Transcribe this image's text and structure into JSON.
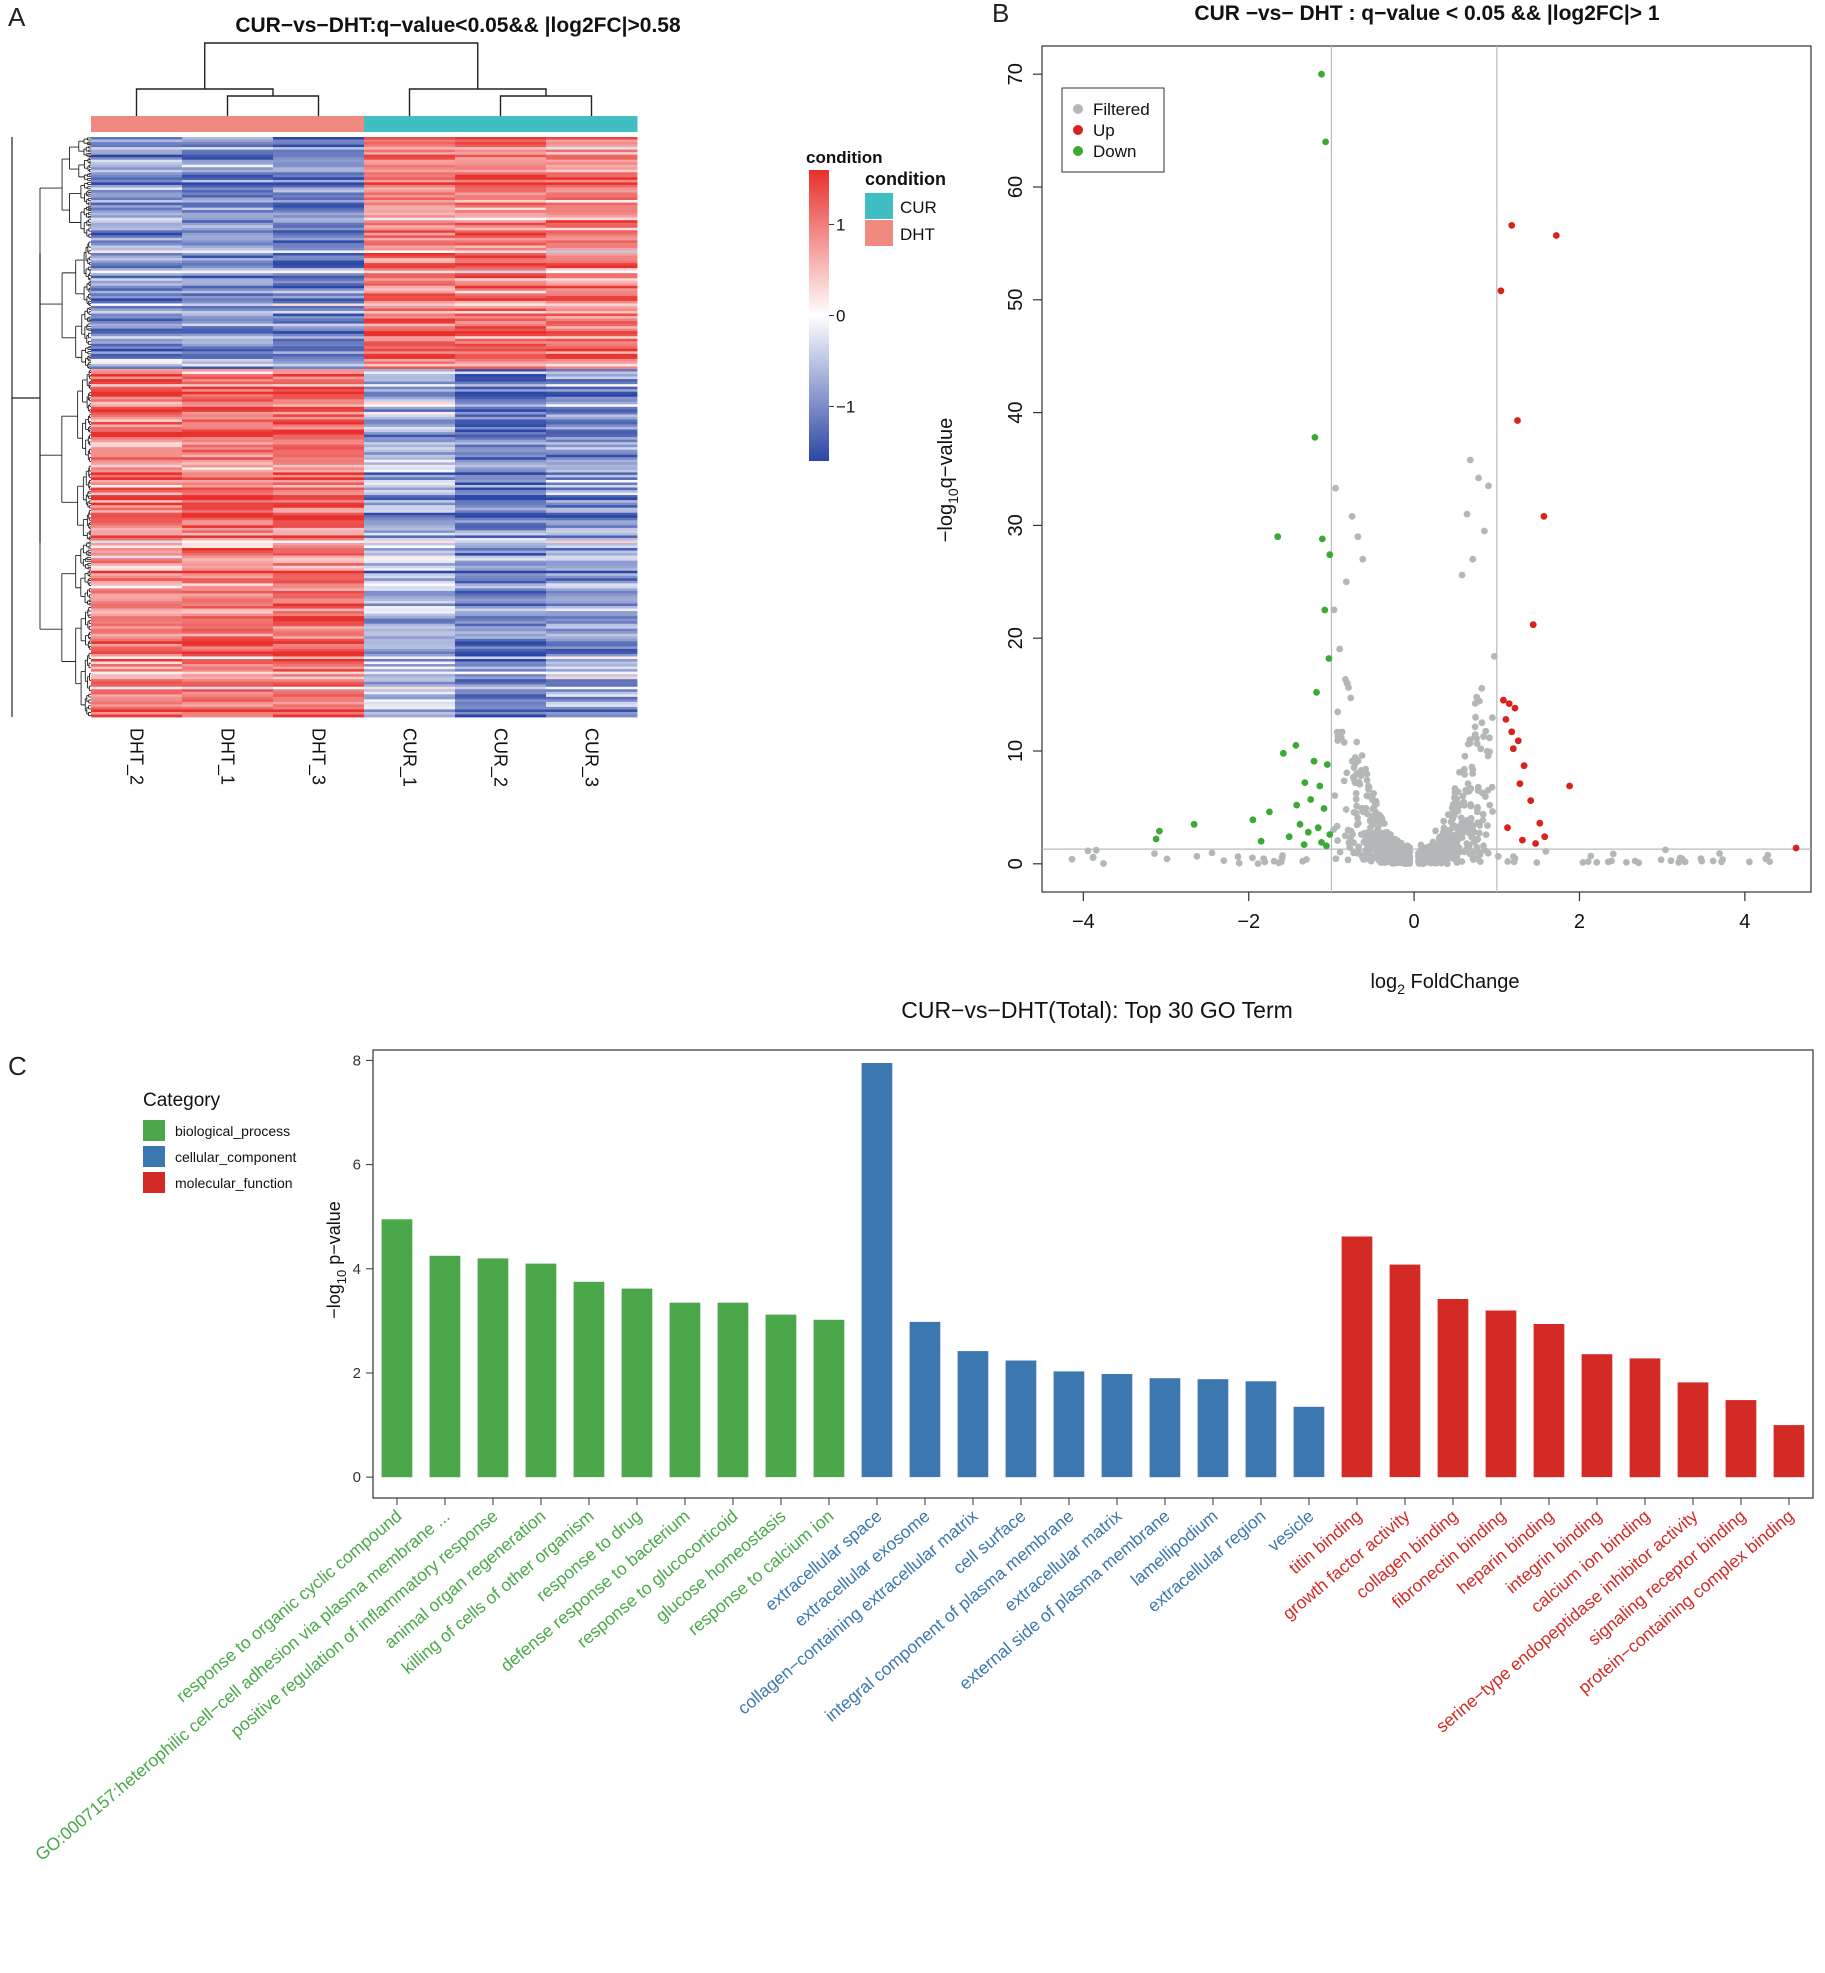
{
  "panels": {
    "A": "A",
    "B": "B",
    "C": "C"
  },
  "colors": {
    "dht": "#f08a80",
    "cur": "#3fbfc4",
    "heat_high": "#e8302c",
    "heat_mid": "#ffffff",
    "heat_low": "#2b46a6",
    "filtered": "#b3b7b8",
    "up": "#d9221c",
    "down": "#3aaa35",
    "biological_process": "#4aa84a",
    "cellular_component": "#3b78b0",
    "molecular_function": "#d32a25"
  },
  "chart_data": [
    {
      "type": "heatmap",
      "title": "CUR−vs−DHT:q−value<0.05&& |log2FC|>0.58",
      "columns": [
        "DHT_2",
        "DHT_1",
        "DHT_3",
        "CUR_1",
        "CUR_2",
        "CUR_3"
      ],
      "column_conditions": [
        "DHT",
        "DHT",
        "DHT",
        "CUR",
        "CUR",
        "CUR"
      ],
      "condition_bar_label": "condition",
      "legend": {
        "title": "condition",
        "entries": [
          "CUR",
          "DHT"
        ]
      },
      "color_scale": {
        "ticks": [
          1,
          0,
          -1
        ],
        "tick_labels": [
          "1",
          "0",
          "−1"
        ],
        "range": [
          -1.6,
          1.6
        ]
      },
      "row_clusters": [
        {
          "name": "up_in_CUR",
          "row_fraction": 0.4,
          "mean_values": [
            -0.9,
            -0.95,
            -1.05,
            1.0,
            1.05,
            0.95
          ]
        },
        {
          "name": "down_in_CUR",
          "row_fraction": 0.6,
          "mean_values": [
            0.95,
            1.05,
            1.1,
            -0.6,
            -1.1,
            -0.85
          ]
        }
      ]
    },
    {
      "type": "scatter",
      "title": "CUR −vs− DHT : q−value < 0.05 && |log2FC|> 1",
      "xlabel_main": "log",
      "xlabel_sub": "2",
      "xlabel_rest": " FoldChange",
      "ylabel_main": "−log",
      "ylabel_sub": "10",
      "ylabel_rest": "q−value",
      "xlim": [
        -4.5,
        4.8
      ],
      "ylim": [
        -2.5,
        72.5
      ],
      "xticks": [
        -4,
        -2,
        0,
        2,
        4
      ],
      "xtick_labels": [
        "−4",
        "−2",
        "0",
        "2",
        "4"
      ],
      "yticks": [
        0,
        10,
        20,
        30,
        40,
        50,
        60,
        70
      ],
      "ytick_labels": [
        "0",
        "10",
        "20",
        "30",
        "40",
        "50",
        "60",
        "70"
      ],
      "vlines": [
        -1,
        1
      ],
      "hline": 1.3,
      "legend": [
        "Filtered",
        "Up",
        "Down"
      ],
      "up_points": [
        [
          1.18,
          56.6
        ],
        [
          1.72,
          55.7
        ],
        [
          1.05,
          50.8
        ],
        [
          1.25,
          39.3
        ],
        [
          1.57,
          30.8
        ],
        [
          1.44,
          21.2
        ],
        [
          1.88,
          6.9
        ],
        [
          1.08,
          14.5
        ],
        [
          1.15,
          14.2
        ],
        [
          1.22,
          13.8
        ],
        [
          1.11,
          12.8
        ],
        [
          1.18,
          11.7
        ],
        [
          1.26,
          10.9
        ],
        [
          1.2,
          10.2
        ],
        [
          1.33,
          8.7
        ],
        [
          1.28,
          7.1
        ],
        [
          1.41,
          5.6
        ],
        [
          1.52,
          3.6
        ],
        [
          1.31,
          2.1
        ],
        [
          1.47,
          1.8
        ],
        [
          1.13,
          3.2
        ],
        [
          1.58,
          2.4
        ],
        [
          4.62,
          1.4
        ]
      ],
      "down_points": [
        [
          -1.12,
          70.0
        ],
        [
          -1.07,
          64.0
        ],
        [
          -1.2,
          37.8
        ],
        [
          -1.65,
          29.0
        ],
        [
          -1.11,
          28.8
        ],
        [
          -1.02,
          27.4
        ],
        [
          -1.08,
          22.5
        ],
        [
          -1.03,
          18.2
        ],
        [
          -1.18,
          15.2
        ],
        [
          -1.43,
          10.5
        ],
        [
          -1.58,
          9.8
        ],
        [
          -1.21,
          9.1
        ],
        [
          -1.05,
          8.8
        ],
        [
          -1.32,
          7.2
        ],
        [
          -1.14,
          6.9
        ],
        [
          -1.25,
          5.7
        ],
        [
          -1.42,
          5.2
        ],
        [
          -1.09,
          4.9
        ],
        [
          -1.75,
          4.6
        ],
        [
          -1.95,
          3.9
        ],
        [
          -1.38,
          3.5
        ],
        [
          -1.16,
          3.2
        ],
        [
          -1.28,
          2.8
        ],
        [
          -1.02,
          2.6
        ],
        [
          -1.51,
          2.4
        ],
        [
          -1.85,
          2.0
        ],
        [
          -1.12,
          1.9
        ],
        [
          -1.33,
          1.7
        ],
        [
          -1.06,
          1.6
        ],
        [
          -3.08,
          2.9
        ],
        [
          -3.12,
          2.2
        ],
        [
          -2.66,
          3.5
        ]
      ],
      "filtered_extremes": [
        [
          -0.95,
          33.3
        ],
        [
          -0.75,
          30.8
        ],
        [
          -0.68,
          29.0
        ],
        [
          -0.62,
          27.0
        ],
        [
          -0.82,
          25.0
        ],
        [
          0.68,
          35.8
        ],
        [
          0.78,
          34.2
        ],
        [
          0.9,
          33.5
        ],
        [
          0.64,
          31.0
        ],
        [
          0.85,
          29.5
        ],
        [
          0.71,
          27.0
        ],
        [
          0.58,
          25.6
        ]
      ]
    },
    {
      "type": "bar",
      "title": "CUR−vs−DHT(Total): Top 30 GO Term",
      "ylabel_main": "−log",
      "ylabel_sub": "10",
      "ylabel_rest": " p−value",
      "ylim": [
        -0.4,
        8.2
      ],
      "yticks": [
        0,
        2,
        4,
        6,
        8
      ],
      "ytick_labels": [
        "0",
        "2",
        "4",
        "6",
        "8"
      ],
      "legend_title": "Category",
      "legend": [
        "biological_process",
        "cellular_component",
        "molecular_function"
      ],
      "categories": [
        "response to organic cyclic compound",
        "GO:0007157:heterophilic cell−cell adhesion via plasma membrane ...",
        "positive regulation of inflammatory response",
        "animal organ regeneration",
        "killing of cells of other organism",
        "response to drug",
        "defense response to bacterium",
        "response to glucocorticoid",
        "glucose homeostasis",
        "response to calcium ion",
        "extracellular space",
        "extracellular exosome",
        "collagen−containing extracellular matrix",
        "cell surface",
        "integral component of plasma membrane",
        "extracellular matrix",
        "external side of plasma membrane",
        "lamellipodium",
        "extracellular region",
        "vesicle",
        "titin binding",
        "growth factor activity",
        "collagen binding",
        "fibronectin binding",
        "heparin binding",
        "integrin binding",
        "calcium ion binding",
        "serine−type endopeptidase inhibitor activity",
        "signaling receptor binding",
        "protein−containing complex binding"
      ],
      "groups": [
        "biological_process",
        "biological_process",
        "biological_process",
        "biological_process",
        "biological_process",
        "biological_process",
        "biological_process",
        "biological_process",
        "biological_process",
        "biological_process",
        "cellular_component",
        "cellular_component",
        "cellular_component",
        "cellular_component",
        "cellular_component",
        "cellular_component",
        "cellular_component",
        "cellular_component",
        "cellular_component",
        "cellular_component",
        "molecular_function",
        "molecular_function",
        "molecular_function",
        "molecular_function",
        "molecular_function",
        "molecular_function",
        "molecular_function",
        "molecular_function",
        "molecular_function",
        "molecular_function"
      ],
      "values": [
        4.95,
        4.25,
        4.2,
        4.1,
        3.75,
        3.62,
        3.35,
        3.35,
        3.12,
        3.02,
        7.95,
        2.98,
        2.42,
        2.24,
        2.03,
        1.98,
        1.9,
        1.88,
        1.84,
        1.35,
        4.62,
        4.08,
        3.42,
        3.2,
        2.94,
        2.36,
        2.28,
        1.82,
        1.48,
        1.0
      ]
    }
  ]
}
